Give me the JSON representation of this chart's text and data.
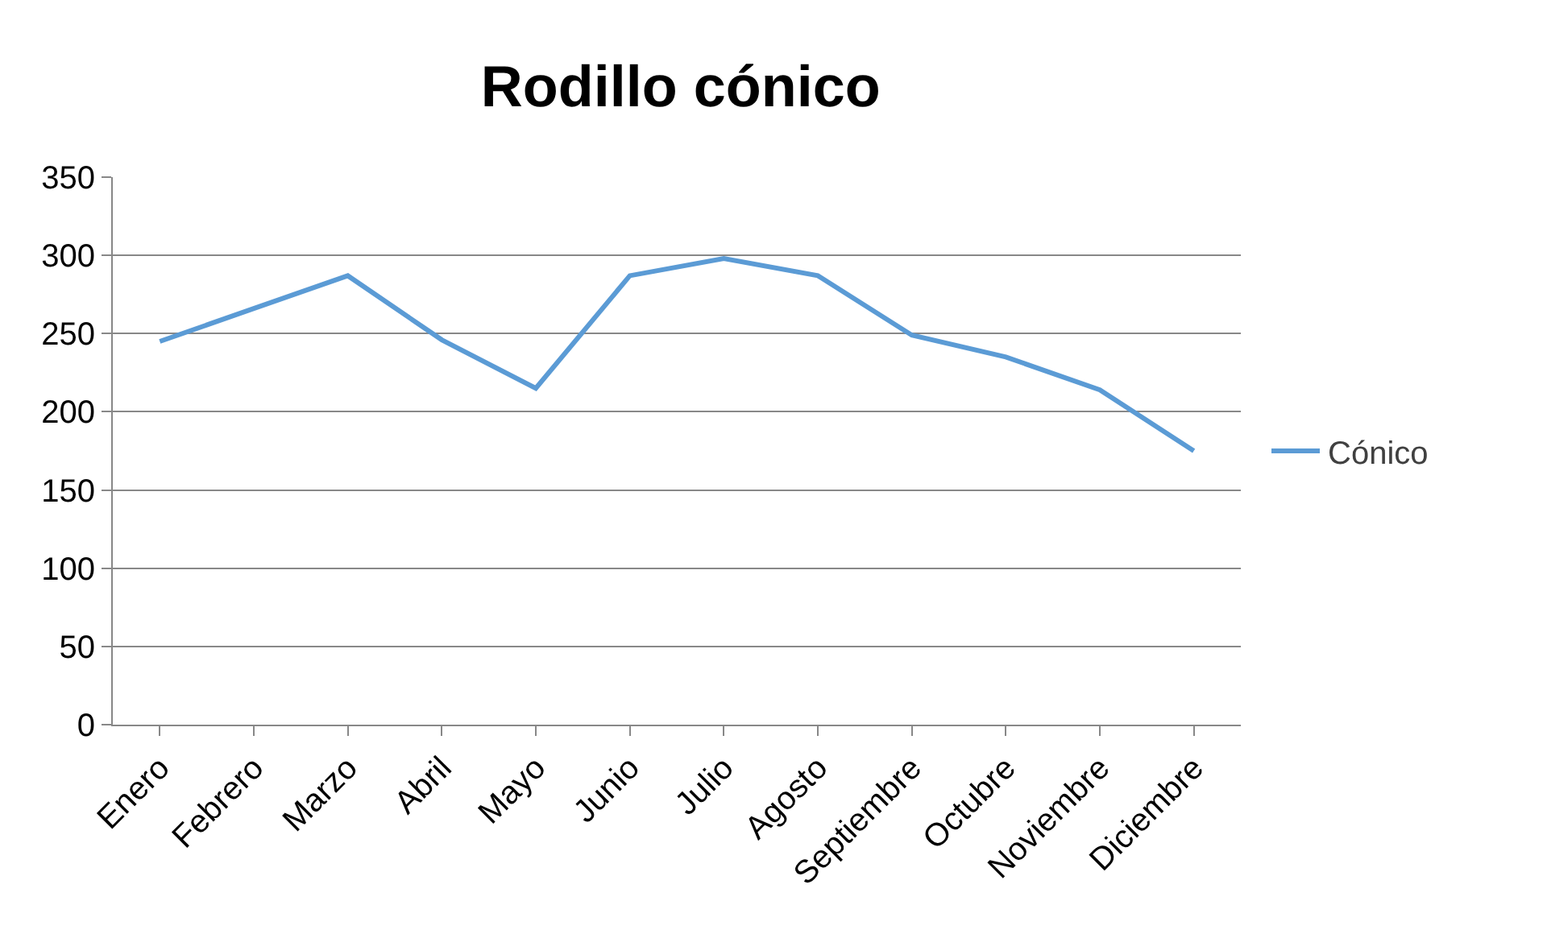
{
  "chart_data": {
    "type": "line",
    "title": "Rodillo cónico",
    "categories": [
      "Enero",
      "Febrero",
      "Marzo",
      "Abril",
      "Mayo",
      "Junio",
      "Julio",
      "Agosto",
      "Septiembre",
      "Octubre",
      "Noviembre",
      "Diciembre"
    ],
    "series": [
      {
        "name": "Cónico",
        "color": "#5b9bd5",
        "values": [
          245,
          266,
          287,
          246,
          215,
          287,
          298,
          287,
          249,
          235,
          214,
          175
        ]
      }
    ],
    "ylim": [
      0,
      350
    ],
    "yticks": [
      0,
      50,
      100,
      150,
      200,
      250,
      300,
      350
    ],
    "grid": "y",
    "legend": "right",
    "marker": "none",
    "line_style": "solid"
  }
}
